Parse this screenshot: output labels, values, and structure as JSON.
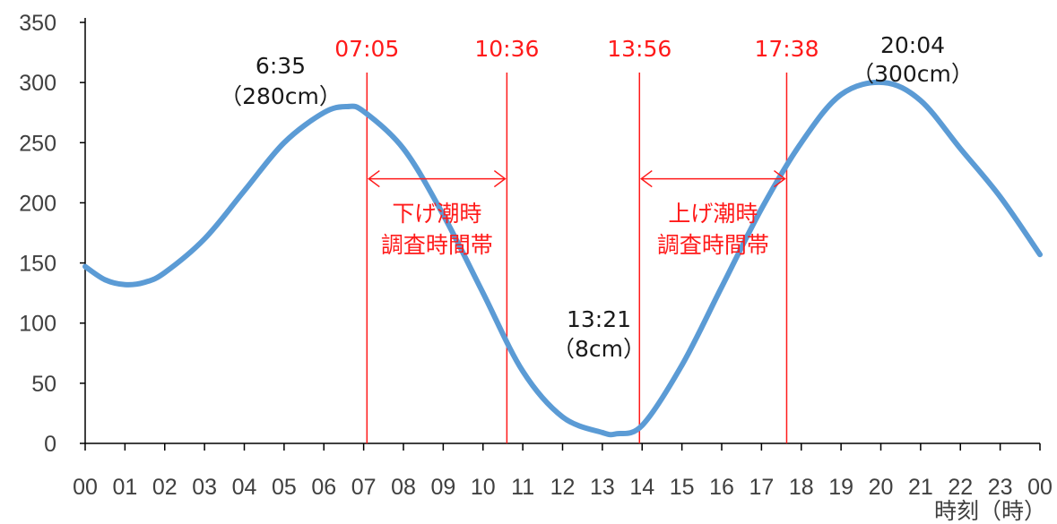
{
  "chart_data": {
    "type": "line",
    "xlabel": "時刻（時）",
    "ylabel": "",
    "xlim": [
      0,
      24
    ],
    "ylim": [
      0,
      350
    ],
    "yticks": [
      0,
      50,
      100,
      150,
      200,
      250,
      300,
      350
    ],
    "xtick_labels": [
      "00",
      "01",
      "02",
      "03",
      "04",
      "05",
      "06",
      "07",
      "08",
      "09",
      "10",
      "11",
      "12",
      "13",
      "14",
      "15",
      "16",
      "17",
      "18",
      "19",
      "20",
      "21",
      "22",
      "23",
      "00"
    ],
    "series": [
      {
        "color": "#5b9bd5",
        "x": [
          0,
          0.5,
          1,
          1.5,
          2,
          3,
          4,
          5,
          6,
          6.58,
          7,
          8,
          9,
          10,
          11,
          12,
          13,
          13.35,
          14,
          15,
          16,
          17,
          18,
          19,
          20.07,
          21,
          22,
          23,
          24
        ],
        "y": [
          147,
          136,
          132,
          134,
          142,
          170,
          210,
          250,
          275,
          280,
          276,
          245,
          190,
          125,
          60,
          22,
          9,
          8,
          15,
          65,
          130,
          195,
          250,
          290,
          300,
          285,
          245,
          205,
          157
        ]
      }
    ],
    "annotations": [
      {
        "time": "6:35",
        "level": "（280cm）",
        "x": 6.58,
        "y": 280
      },
      {
        "time": "13:21",
        "level": "（8cm）",
        "x": 13.35,
        "y": 8
      },
      {
        "time": "20:04",
        "level": "（300cm）",
        "x": 20.07,
        "y": 300
      }
    ],
    "vlines": [
      {
        "label": "07:05",
        "x": 7.083
      },
      {
        "label": "10:36",
        "x": 10.6
      },
      {
        "label": "13:56",
        "x": 13.933
      },
      {
        "label": "17:38",
        "x": 17.633
      }
    ],
    "ranges": [
      {
        "from": 7.083,
        "to": 10.6,
        "y": 220,
        "line1": "下げ潮時",
        "line2": "調査時間帯"
      },
      {
        "from": 13.933,
        "to": 17.633,
        "y": 220,
        "line1": "上げ潮時",
        "line2": "調査時間帯"
      }
    ],
    "colors": {
      "line": "#5b9bd5",
      "marker": "#ff1a1a",
      "axis": "#000000",
      "text": "#404040"
    }
  }
}
